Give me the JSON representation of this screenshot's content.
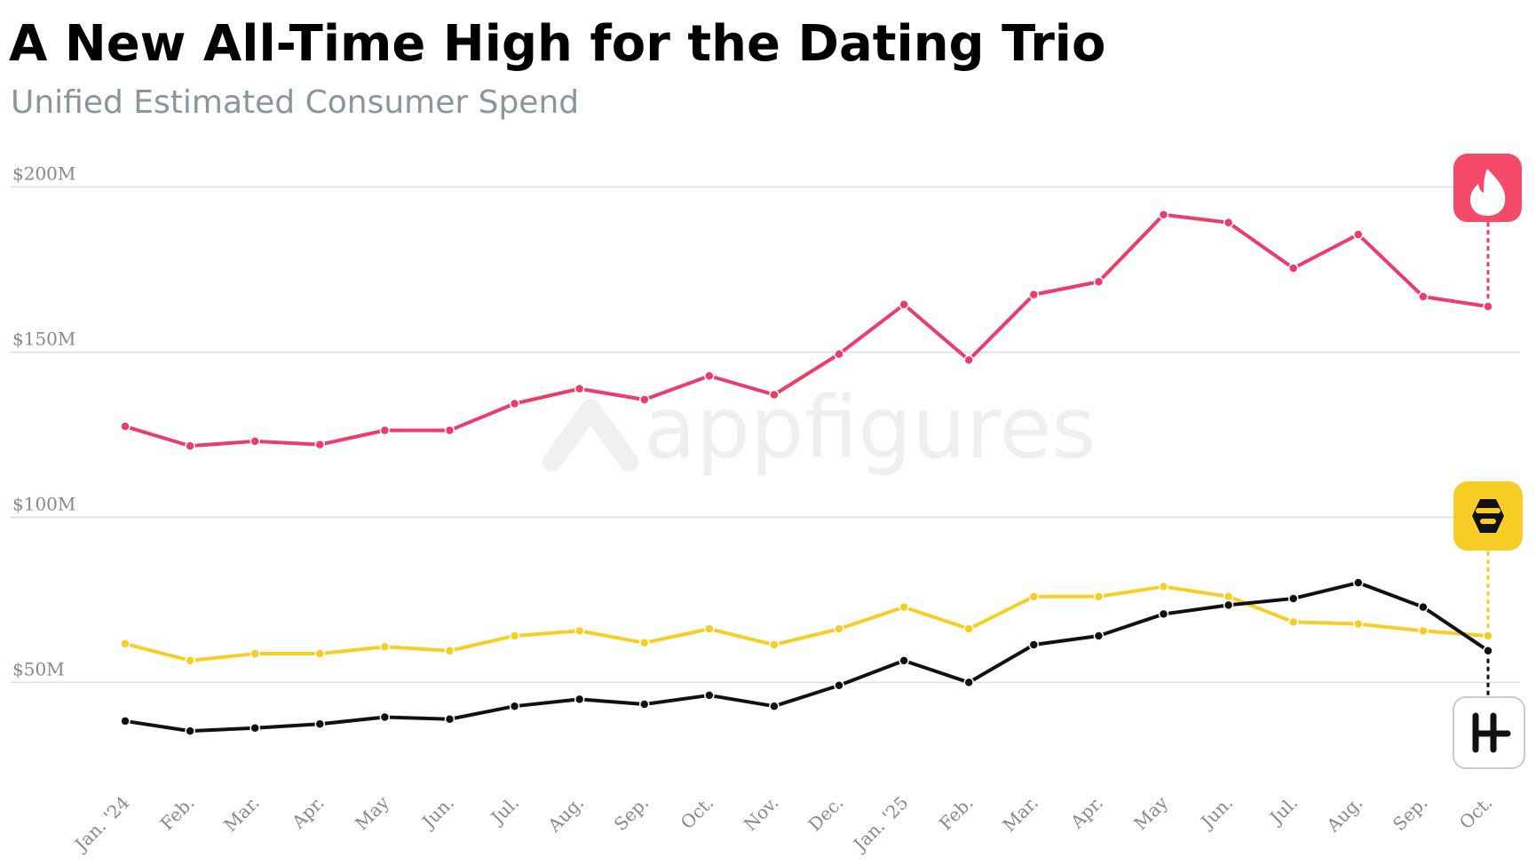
{
  "chart_data": {
    "type": "line",
    "title": "A New All-Time High for the Dating Trio",
    "subtitle": "Unified Estimated Consumer Spend",
    "watermark": "appfigures",
    "categories": [
      "Jan. '24",
      "Feb.",
      "Mar.",
      "Apr.",
      "May",
      "Jun.",
      "Jul.",
      "Aug.",
      "Sep.",
      "Oct.",
      "Nov.",
      "Dec.",
      "Jan. '25",
      "Feb.",
      "Mar.",
      "Apr.",
      "May",
      "Jun.",
      "Jul.",
      "Aug.",
      "Sep.",
      "Oct."
    ],
    "series": [
      {
        "color": "#ee3b67",
        "values": [
          127.5,
          121.6,
          123,
          122,
          126.3,
          126.3,
          134.4,
          138.9,
          135.6,
          142.8,
          137.1,
          149.4,
          164.4,
          147.6,
          167.4,
          171.3,
          191.6,
          189.2,
          175.4,
          185.6,
          166.8,
          163.8
        ]
      },
      {
        "color": "#f8cd25",
        "values": [
          61.7,
          56.6,
          58.7,
          58.7,
          60.8,
          59.6,
          64.1,
          65.6,
          62,
          66.2,
          61.4,
          66.2,
          72.8,
          66.2,
          76,
          76,
          79,
          76,
          68.3,
          67.7,
          65.6,
          64.1
        ]
      },
      {
        "color": "#111111",
        "values": [
          38.3,
          35.3,
          36.2,
          37.4,
          39.5,
          38.9,
          42.8,
          44.9,
          43.4,
          46.1,
          42.8,
          49.1,
          56.6,
          50,
          61.4,
          64.1,
          70.7,
          73.4,
          75.4,
          80.2,
          72.8,
          59.6
        ]
      }
    ],
    "ylim": [
      20,
      200
    ],
    "yticks": [
      {
        "value": 50,
        "label": "$50M"
      },
      {
        "value": 100,
        "label": "$100M"
      },
      {
        "value": 150,
        "label": "$150M"
      },
      {
        "value": 200,
        "label": "$200M"
      }
    ],
    "grid": true
  }
}
